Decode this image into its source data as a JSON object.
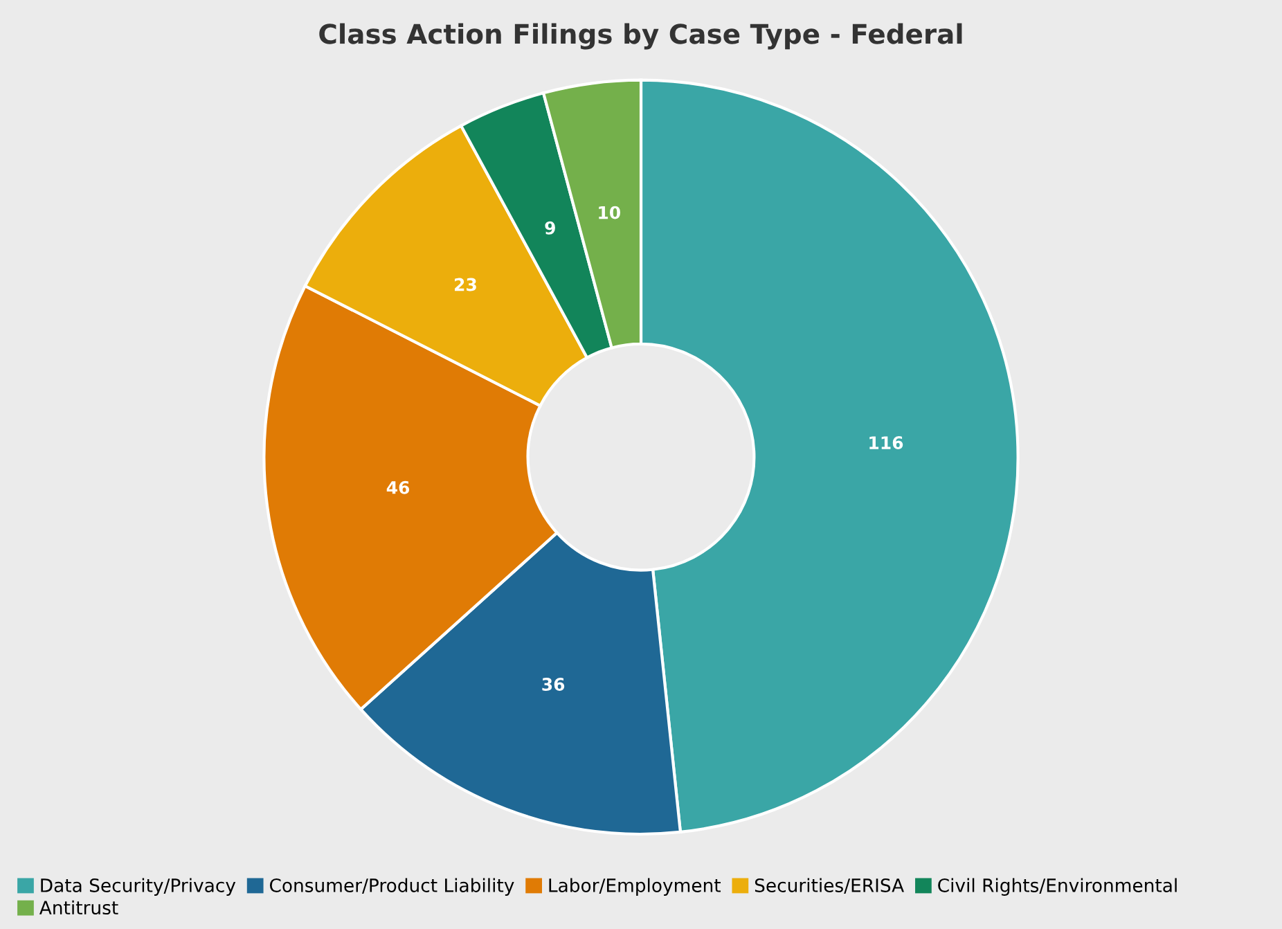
{
  "chart_data": {
    "type": "donut",
    "title": "Class Action Filings by Case Type - Federal",
    "categories": [
      "Data Security/Privacy",
      "Consumer/Product Liability",
      "Labor/Employment",
      "Securities/ERISA",
      "Civil Rights/Environmental",
      "Antitrust"
    ],
    "values": [
      116,
      36,
      46,
      23,
      9,
      10
    ],
    "colors": [
      "#3aa6a6",
      "#1f6895",
      "#e07b05",
      "#ecae0c",
      "#12855a",
      "#74b04b"
    ],
    "data_labels": true,
    "legend": "bottom"
  }
}
